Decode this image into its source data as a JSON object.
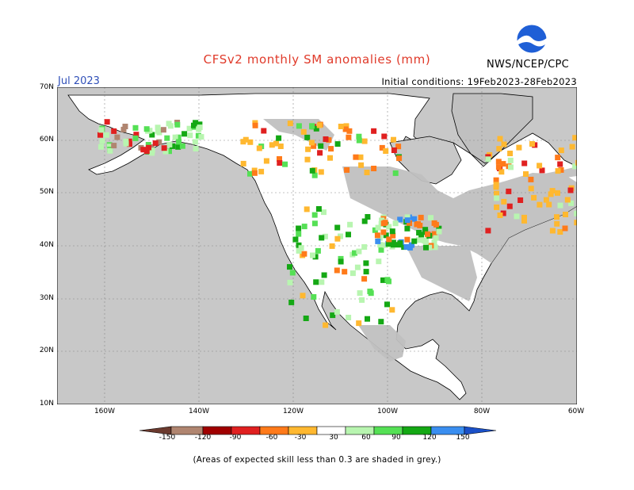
{
  "title": "CFSv2 monthly SM anomalies (mm)",
  "month": "Jul 2023",
  "initial_conditions": "Initial conditions: 19Feb2023-28Feb2023",
  "agency": "NWS/NCEP/CPC",
  "logo_text": "NOAA",
  "lat_labels": [
    "70N",
    "60N",
    "50N",
    "40N",
    "30N",
    "20N",
    "10N"
  ],
  "lon_labels": [
    "160W",
    "140W",
    "120W",
    "100W",
    "80W",
    "60W"
  ],
  "colorbar": {
    "ticks": [
      "-150",
      "-120",
      "-90",
      "-60",
      "-30",
      "30",
      "60",
      "90",
      "120",
      "150"
    ],
    "colors": [
      "#6b3a2e",
      "#b08570",
      "#a00000",
      "#e02020",
      "#ff7a1a",
      "#ffb830",
      "#ffffff",
      "#b8f5b0",
      "#55e055",
      "#14a814",
      "#3a8ef0",
      "#1a50c8"
    ]
  },
  "footnote": "(Areas of expected skill less than 0.3 are shaded in grey.)",
  "colors": {
    "ocean": "#c8c8c8",
    "land": "#ffffff",
    "grey_skill": "#c0c0c0",
    "title": "#e03a2a",
    "month": "#2f4fb8"
  }
}
